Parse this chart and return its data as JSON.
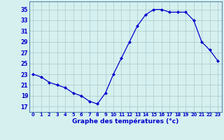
{
  "hours": [
    0,
    1,
    2,
    3,
    4,
    5,
    6,
    7,
    8,
    9,
    10,
    11,
    12,
    13,
    14,
    15,
    16,
    17,
    18,
    19,
    20,
    21,
    22,
    23
  ],
  "temps": [
    23.0,
    22.5,
    21.5,
    21.0,
    20.5,
    19.5,
    19.0,
    18.0,
    17.5,
    19.5,
    23.0,
    26.0,
    29.0,
    32.0,
    34.0,
    35.0,
    35.0,
    34.5,
    34.5,
    34.5,
    33.0,
    29.0,
    27.5,
    25.5
  ],
  "line_color": "#0000cc",
  "marker": "D",
  "marker_size": 2.0,
  "bg_color": "#d6f0f0",
  "grid_color": "#b0cece",
  "xlabel": "Graphe des températures (°c)",
  "xlabel_color": "#0000cc",
  "xlabel_fontsize": 6.5,
  "tick_color": "#0000cc",
  "yticks": [
    17,
    19,
    21,
    23,
    25,
    27,
    29,
    31,
    33,
    35
  ],
  "ylim": [
    16.0,
    36.5
  ],
  "xlim": [
    -0.5,
    23.5
  ],
  "xticks": [
    0,
    1,
    2,
    3,
    4,
    5,
    6,
    7,
    8,
    9,
    10,
    11,
    12,
    13,
    14,
    15,
    16,
    17,
    18,
    19,
    20,
    21,
    22,
    23
  ],
  "spine_color": "#5588aa"
}
